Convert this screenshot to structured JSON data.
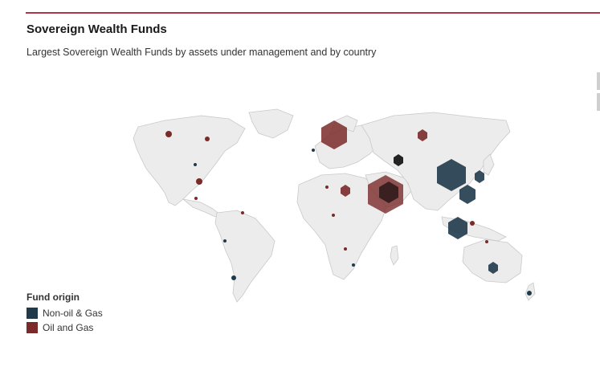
{
  "header": {
    "title": "Sovereign Wealth Funds",
    "subtitle": "Largest Sovereign Wealth Funds by assets under management and by country"
  },
  "legend": {
    "title": "Fund origin",
    "items": [
      {
        "label": "Non-oil & Gas",
        "color": "#1f3a4a"
      },
      {
        "label": "Oil and Gas",
        "color": "#7b2a2a"
      }
    ]
  },
  "colors": {
    "non_oil": "#1f3a4a",
    "oil": "#7b2a2a",
    "land": "#ececec",
    "accent_rule": "#b1344b"
  }
}
